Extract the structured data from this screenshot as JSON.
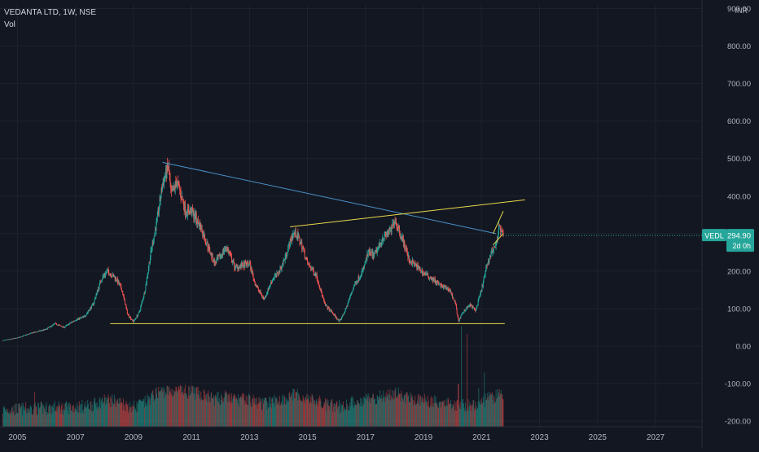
{
  "header": {
    "symbol_title": "VEDANTA LTD, 1W, NSE",
    "volume_label": "Vol",
    "currency": "INR"
  },
  "price_tag": {
    "ticker": "VEDL",
    "price": "294.90",
    "countdown": "2d 0h"
  },
  "colors": {
    "background": "#131722",
    "grid": "#1e222d",
    "axis_text": "#b2b5be",
    "candle_up": "#26a69a",
    "candle_down": "#ef5350",
    "support_line": "#e8d84a",
    "resistance_line": "#4a90c8",
    "price_tag_bg": "#26a69a"
  },
  "chart_data": {
    "type": "candlestick",
    "title": "VEDANTA LTD, 1W, NSE",
    "interval": "1W",
    "x_axis": {
      "type": "date",
      "ticks": [
        "2005",
        "2007",
        "2009",
        "2011",
        "2013",
        "2015",
        "2017",
        "2019",
        "2021",
        "2023",
        "2025",
        "2027"
      ],
      "range": [
        2004.4,
        2028.6
      ]
    },
    "y_axis": {
      "unit": "INR",
      "ticks": [
        -200,
        -100,
        0,
        100,
        200,
        300,
        400,
        500,
        600,
        700,
        800,
        900
      ],
      "tick_labels": [
        "-200.00",
        "-100.00",
        "0.00",
        "100.00",
        "200.00",
        "300.00",
        "400.00",
        "500.00",
        "600.00",
        "700.00",
        "800.00",
        "900.00"
      ],
      "range": [
        -215,
        912
      ]
    },
    "grid": true,
    "last_price": 294.9,
    "price_path": [
      [
        2004.5,
        15
      ],
      [
        2005.0,
        22
      ],
      [
        2005.5,
        35
      ],
      [
        2006.0,
        45
      ],
      [
        2006.3,
        60
      ],
      [
        2006.6,
        50
      ],
      [
        2007.0,
        70
      ],
      [
        2007.3,
        78
      ],
      [
        2007.6,
        110
      ],
      [
        2007.9,
        180
      ],
      [
        2008.1,
        200
      ],
      [
        2008.4,
        180
      ],
      [
        2008.6,
        150
      ],
      [
        2008.8,
        85
      ],
      [
        2009.0,
        65
      ],
      [
        2009.2,
        90
      ],
      [
        2009.4,
        150
      ],
      [
        2009.6,
        250
      ],
      [
        2009.8,
        330
      ],
      [
        2010.0,
        430
      ],
      [
        2010.2,
        480
      ],
      [
        2010.3,
        400
      ],
      [
        2010.5,
        440
      ],
      [
        2010.8,
        360
      ],
      [
        2011.0,
        360
      ],
      [
        2011.3,
        320
      ],
      [
        2011.5,
        280
      ],
      [
        2011.8,
        220
      ],
      [
        2012.0,
        240
      ],
      [
        2012.2,
        265
      ],
      [
        2012.5,
        210
      ],
      [
        2012.8,
        215
      ],
      [
        2013.0,
        220
      ],
      [
        2013.2,
        165
      ],
      [
        2013.5,
        125
      ],
      [
        2013.8,
        180
      ],
      [
        2014.0,
        195
      ],
      [
        2014.2,
        230
      ],
      [
        2014.5,
        300
      ],
      [
        2014.6,
        300
      ],
      [
        2014.8,
        270
      ],
      [
        2015.0,
        220
      ],
      [
        2015.3,
        190
      ],
      [
        2015.6,
        110
      ],
      [
        2015.9,
        85
      ],
      [
        2016.1,
        65
      ],
      [
        2016.3,
        95
      ],
      [
        2016.6,
        160
      ],
      [
        2016.9,
        200
      ],
      [
        2017.1,
        250
      ],
      [
        2017.3,
        240
      ],
      [
        2017.6,
        290
      ],
      [
        2017.9,
        310
      ],
      [
        2018.0,
        340
      ],
      [
        2018.1,
        320
      ],
      [
        2018.3,
        280
      ],
      [
        2018.5,
        230
      ],
      [
        2018.8,
        210
      ],
      [
        2019.0,
        195
      ],
      [
        2019.3,
        180
      ],
      [
        2019.6,
        160
      ],
      [
        2019.9,
        150
      ],
      [
        2020.1,
        115
      ],
      [
        2020.2,
        66
      ],
      [
        2020.4,
        95
      ],
      [
        2020.6,
        110
      ],
      [
        2020.8,
        95
      ],
      [
        2021.0,
        150
      ],
      [
        2021.2,
        220
      ],
      [
        2021.4,
        260
      ],
      [
        2021.5,
        270
      ],
      [
        2021.6,
        320
      ],
      [
        2021.7,
        300
      ],
      [
        2021.75,
        294.9
      ]
    ],
    "volume_spikes": [
      [
        2005.6,
        0.45
      ],
      [
        2008.8,
        0.3
      ],
      [
        2009.2,
        0.35
      ],
      [
        2012.9,
        0.25
      ],
      [
        2015.6,
        0.3
      ],
      [
        2016.1,
        0.35
      ],
      [
        2018.5,
        0.25
      ],
      [
        2020.2,
        0.55
      ],
      [
        2020.3,
        1.3
      ],
      [
        2020.5,
        1.2
      ],
      [
        2020.9,
        0.5
      ],
      [
        2021.1,
        0.7
      ],
      [
        2021.5,
        0.35
      ]
    ],
    "drawings": [
      {
        "name": "support-line",
        "color": "support",
        "points": [
          [
            2008.2,
            60
          ],
          [
            2021.8,
            60
          ]
        ]
      },
      {
        "name": "descending-trendline",
        "color": "resistance",
        "points": [
          [
            2010.0,
            490
          ],
          [
            2021.5,
            300
          ]
        ]
      },
      {
        "name": "ascending-trendline",
        "color": "support",
        "points": [
          [
            2014.4,
            318
          ],
          [
            2022.5,
            390
          ]
        ]
      },
      {
        "name": "flag-line-upper",
        "color": "support",
        "points": [
          [
            2021.4,
            300
          ],
          [
            2021.75,
            360
          ]
        ]
      },
      {
        "name": "flag-line-lower",
        "color": "support",
        "points": [
          [
            2021.4,
            270
          ],
          [
            2021.75,
            300
          ]
        ]
      }
    ]
  }
}
